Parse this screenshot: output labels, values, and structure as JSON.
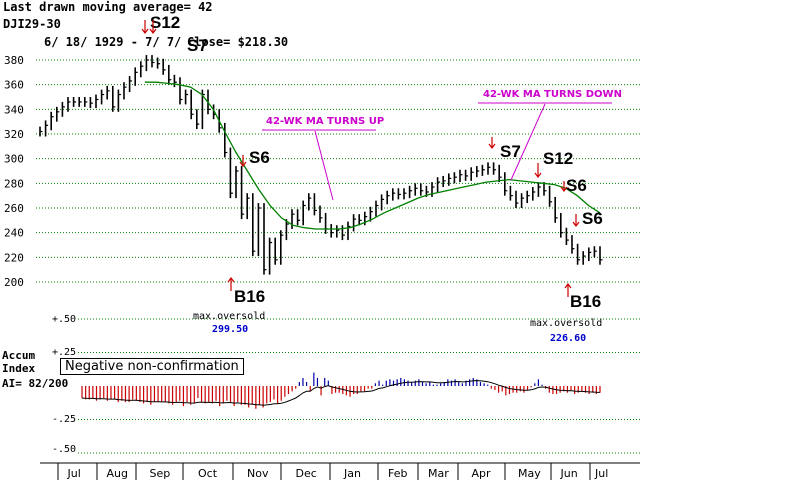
{
  "header": {
    "ma_label": "Last drawn moving average= 42",
    "symbol": "DJI29-30",
    "date_range": "6/ 18/ 1929 -  7/ 7/ 1930",
    "close_label": "Close= $218.30",
    "top_signal": "S12"
  },
  "accum_panel": {
    "title_line1": "Accum",
    "title_line2": "Index",
    "ai_label": "AI= 82/200",
    "note": "Negative non-confirmation",
    "ticks": [
      "+.50",
      "+.25",
      "-.25",
      "-.50"
    ],
    "tick_values": [
      0.5,
      0.25,
      -0.25,
      -0.5
    ]
  },
  "callouts": {
    "ma_up": "42-WK MA TURNS UP",
    "ma_down": "42-WK MA TURNS DOWN"
  },
  "left_annotation": {
    "text": "max.oversold",
    "value": "299.50"
  },
  "right_annotation": {
    "text": "max.oversold",
    "value": "226.60"
  },
  "signals": [
    "S7",
    "S6",
    "B16",
    "S7",
    "S12",
    "S6",
    "S6",
    "B16"
  ],
  "colors": {
    "price": "#000000",
    "ma": "#008000",
    "accum_pos": "#0000aa",
    "accum_neg": "#cc0000",
    "arrow": "#cc0000",
    "callout": "#cc00cc",
    "grid": "#008000"
  },
  "chart_data": {
    "type": "line",
    "title": "DJI29-30",
    "xlabel": "",
    "ylabel": "",
    "ylim": [
      190,
      390
    ],
    "yticks": [
      200,
      220,
      240,
      260,
      280,
      300,
      320,
      340,
      360,
      380
    ],
    "months": [
      "Jul",
      "Aug",
      "Sep",
      "Oct",
      "Nov",
      "Dec",
      "Jan",
      "Feb",
      "Mar",
      "Apr",
      "May",
      "Jun",
      "Jul"
    ],
    "series": [
      {
        "values": [
          322,
          327,
          334,
          338,
          342,
          346,
          346,
          346,
          346,
          345,
          348,
          352,
          355,
          342,
          352,
          358,
          363,
          370,
          375,
          380,
          378,
          377,
          372,
          364,
          362,
          348,
          352,
          336,
          328,
          352,
          340,
          336,
          325,
          305,
          272,
          290,
          255,
          268,
          225,
          260,
          210,
          232,
          218,
          238,
          247,
          255,
          250,
          262,
          268,
          258,
          252,
          243,
          240,
          242,
          238,
          245,
          251,
          250,
          253,
          257,
          262,
          267,
          270,
          272,
          271,
          272,
          274,
          276,
          274,
          273,
          277,
          281,
          282,
          284,
          285,
          287,
          286,
          289,
          290,
          291,
          293,
          291,
          285,
          274,
          270,
          264,
          268,
          270,
          273,
          277,
          274,
          265,
          252,
          240,
          234,
          227,
          218,
          221,
          224,
          225,
          218
        ]
      },
      {
        "values": [
          362,
          362,
          361,
          360,
          358,
          352,
          340,
          322,
          305,
          290,
          275,
          262,
          252,
          246,
          244,
          243,
          243,
          243,
          244,
          247,
          251,
          256,
          260,
          264,
          268,
          271,
          273,
          275,
          277,
          279,
          281,
          282,
          283,
          282,
          281,
          280,
          279,
          276,
          270,
          262,
          256
        ]
      }
    ],
    "accum_index": [
      -0.09,
      -0.1,
      -0.1,
      -0.09,
      -0.11,
      -0.1,
      -0.09,
      -0.11,
      -0.1,
      -0.1,
      -0.12,
      -0.11,
      -0.12,
      -0.12,
      -0.1,
      -0.11,
      -0.12,
      -0.13,
      -0.12,
      -0.14,
      -0.12,
      -0.12,
      -0.12,
      -0.12,
      -0.13,
      -0.14,
      -0.12,
      -0.11,
      -0.15,
      -0.12,
      -0.14,
      -0.13,
      -0.09,
      -0.12,
      -0.13,
      -0.12,
      -0.13,
      -0.11,
      -0.15,
      -0.13,
      -0.11,
      -0.12,
      -0.15,
      -0.12,
      -0.14,
      -0.14,
      -0.16,
      -0.14,
      -0.17,
      -0.14,
      -0.16,
      -0.13,
      -0.12,
      -0.1,
      -0.13,
      -0.11,
      -0.08,
      -0.06,
      -0.04,
      -0.02,
      0.03,
      0.06,
      0.03,
      -0.04,
      0.1,
      0.06,
      -0.07,
      0.06,
      0.04,
      -0.06,
      -0.05,
      -0.05,
      -0.06,
      -0.07,
      -0.08,
      -0.06,
      -0.06,
      -0.04,
      -0.04,
      -0.02,
      -0.02,
      0.02,
      0.04,
      0.01,
      0.04,
      0.05,
      0.04,
      0.05,
      0.06,
      0.05,
      0.04,
      0.03,
      0.04,
      0.05,
      0.03,
      0.02,
      0.03,
      0.01,
      0.01,
      0.02,
      0.03,
      0.05,
      0.04,
      0.05,
      0.03,
      0.02,
      0.04,
      0.05,
      0.06,
      0.05,
      0.03,
      0.02,
      0.01,
      -0.02,
      -0.03,
      -0.05,
      -0.04,
      -0.07,
      -0.06,
      -0.05,
      -0.05,
      -0.04,
      -0.05,
      -0.03,
      -0.01,
      0.02,
      0.05,
      0.01,
      -0.02,
      -0.05,
      -0.06,
      -0.06,
      -0.05,
      -0.04,
      -0.05,
      -0.03,
      -0.06,
      -0.05,
      -0.04,
      -0.05,
      -0.06,
      -0.05,
      -0.06,
      -0.05
    ]
  }
}
